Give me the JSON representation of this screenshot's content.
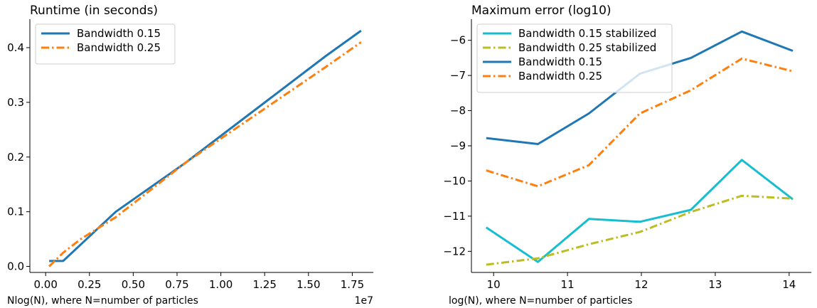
{
  "chart_data": [
    {
      "type": "line",
      "title": "Runtime (in seconds)",
      "xlabel": "Nlog(N), where N=number of particles",
      "ylabel": "",
      "x_offset_label": "1e7",
      "xlim": [
        -0.09,
        1.87
      ],
      "ylim": [
        -0.011,
        0.452
      ],
      "xticks": [
        0.0,
        0.25,
        0.5,
        0.75,
        1.0,
        1.25,
        1.5,
        1.75
      ],
      "xtick_labels": [
        "0.00",
        "0.25",
        "0.50",
        "0.75",
        "1.00",
        "1.25",
        "1.50",
        "1.75"
      ],
      "yticks": [
        0.0,
        0.1,
        0.2,
        0.3,
        0.4
      ],
      "ytick_labels": [
        "0.0",
        "0.1",
        "0.2",
        "0.3",
        "0.4"
      ],
      "legend_position": "top-left",
      "series": [
        {
          "name": "Bandwidth 0.15",
          "color": "#1f77b4",
          "style": "solid",
          "x": [
            0.02,
            0.1,
            0.2,
            0.4,
            0.8,
            1.6,
            1.8
          ],
          "y": [
            0.01,
            0.01,
            0.04,
            0.1,
            0.19,
            0.385,
            0.431
          ]
        },
        {
          "name": "Bandwidth 0.25",
          "color": "#ff7f0e",
          "style": "dashdot",
          "x": [
            0.02,
            0.1,
            0.2,
            0.4,
            0.8,
            1.6,
            1.8
          ],
          "y": [
            0.0,
            0.025,
            0.05,
            0.09,
            0.19,
            0.365,
            0.41
          ]
        }
      ]
    },
    {
      "type": "line",
      "title": "Maximum error (log10)",
      "xlabel": "log(N), where N=number of particles",
      "ylabel": "",
      "xlim": [
        9.7,
        14.3
      ],
      "ylim": [
        -12.6,
        -5.4
      ],
      "xticks": [
        10,
        11,
        12,
        13,
        14
      ],
      "xtick_labels": [
        "10",
        "11",
        "12",
        "13",
        "14"
      ],
      "yticks": [
        -12,
        -11,
        -10,
        -9,
        -8,
        -7,
        -6
      ],
      "ytick_labels": [
        "−12",
        "−11",
        "−10",
        "−9",
        "−8",
        "−7",
        "−6"
      ],
      "legend_position": "top-left",
      "series": [
        {
          "name": "Bandwidth 0.15 stabilized",
          "color": "#17becf",
          "style": "solid",
          "x": [
            9.9,
            10.6,
            11.29,
            11.98,
            12.67,
            13.36,
            14.05
          ],
          "y": [
            -11.32,
            -12.3,
            -11.08,
            -11.16,
            -10.82,
            -9.4,
            -10.52
          ]
        },
        {
          "name": "Bandwidth 0.25 stabilized",
          "color": "#bcbd22",
          "style": "dashdot",
          "x": [
            9.9,
            10.6,
            11.29,
            11.98,
            12.67,
            13.36,
            14.05
          ],
          "y": [
            -12.38,
            -12.2,
            -11.8,
            -11.45,
            -10.88,
            -10.42,
            -10.5
          ]
        },
        {
          "name": "Bandwidth 0.15",
          "color": "#1f77b4",
          "style": "solid",
          "x": [
            9.9,
            10.6,
            11.29,
            11.98,
            12.67,
            13.36,
            14.05
          ],
          "y": [
            -8.78,
            -8.95,
            -8.08,
            -6.95,
            -6.5,
            -5.75,
            -6.3
          ]
        },
        {
          "name": "Bandwidth 0.25",
          "color": "#ff7f0e",
          "style": "dashdot",
          "x": [
            9.9,
            10.6,
            11.29,
            11.98,
            12.67,
            13.36,
            14.05
          ],
          "y": [
            -9.7,
            -10.15,
            -9.55,
            -8.08,
            -7.42,
            -6.52,
            -6.88
          ]
        }
      ]
    }
  ]
}
